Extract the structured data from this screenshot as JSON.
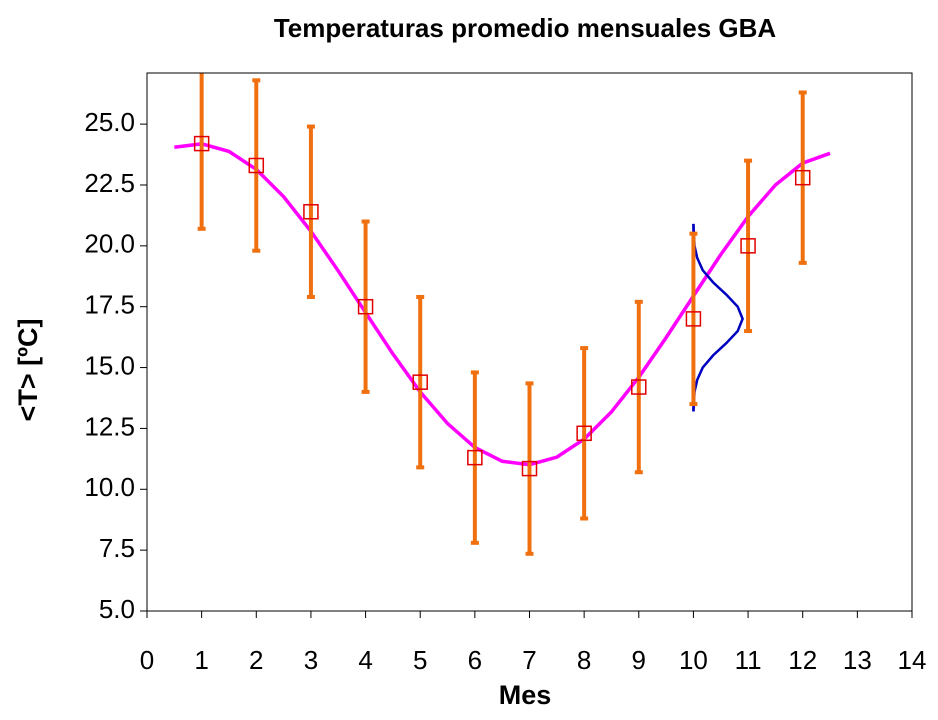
{
  "chart_data": {
    "type": "scatter",
    "title": "Temperaturas promedio mensuales GBA",
    "x_label": "Mes",
    "y_label": "<T> [ºC]",
    "xlim": [
      0,
      14
    ],
    "ylim": [
      5,
      27.1
    ],
    "xticks": [
      0,
      1,
      2,
      3,
      4,
      5,
      6,
      7,
      8,
      9,
      10,
      11,
      12,
      13,
      14
    ],
    "yticks": [
      {
        "value": 5,
        "label": "5.0"
      },
      {
        "value": 7.5,
        "label": "7.5"
      },
      {
        "value": 10,
        "label": "10.0"
      },
      {
        "value": 12.5,
        "label": "12.5"
      },
      {
        "value": 15,
        "label": "15.0"
      },
      {
        "value": 17.5,
        "label": "17.5"
      },
      {
        "value": 20,
        "label": "20.0"
      },
      {
        "value": 22.5,
        "label": "22.5"
      },
      {
        "value": 25,
        "label": "25.0"
      }
    ],
    "series": [
      {
        "type": "scatter",
        "color": "#e00000",
        "error_color": "#f07010",
        "x": [
          1,
          2,
          3,
          4,
          5,
          6,
          7,
          8,
          9,
          10,
          11,
          12
        ],
        "values": [
          24.2,
          23.3,
          21.4,
          17.5,
          14.4,
          11.3,
          10.85,
          12.3,
          14.2,
          17.0,
          20.0,
          22.8
        ],
        "errors": [
          3.5,
          3.5,
          3.5,
          3.5,
          3.5,
          3.5,
          3.5,
          3.5,
          3.5,
          3.5,
          3.5,
          3.5
        ]
      },
      {
        "type": "line",
        "color": "#ff00ff",
        "x": [
          0.5,
          1,
          1.5,
          2,
          2.5,
          3,
          3.5,
          4,
          4.5,
          5,
          5.5,
          6,
          6.5,
          7,
          7.5,
          8,
          8.5,
          9,
          9.5,
          10,
          10.5,
          11,
          11.5,
          12,
          12.5
        ],
        "values": [
          24.05,
          24.19,
          23.88,
          23.14,
          22.02,
          20.6,
          18.97,
          17.26,
          15.56,
          14.0,
          12.7,
          11.72,
          11.15,
          11.01,
          11.32,
          12.06,
          13.18,
          14.6,
          16.23,
          17.94,
          19.64,
          21.2,
          22.5,
          23.4,
          23.8
        ]
      },
      {
        "type": "line",
        "color": "#0000c0",
        "x": [
          10,
          10.02,
          10.07,
          10.17,
          10.36,
          10.6,
          10.81,
          10.9,
          10.81,
          10.6,
          10.36,
          10.17,
          10.07,
          10.02,
          10
        ],
        "values": [
          13.2,
          14,
          14.5,
          15,
          15.5,
          16,
          16.5,
          17,
          17.5,
          18,
          18.5,
          19,
          19.5,
          20,
          20.9
        ]
      },
      {
        "type": "line",
        "color": "#0000c0",
        "x": [
          10,
          10
        ],
        "values": [
          13.2,
          20.9
        ]
      }
    ]
  }
}
